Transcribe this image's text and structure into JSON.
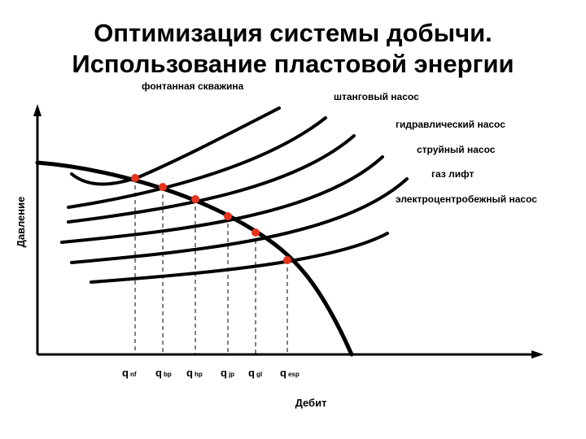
{
  "title": {
    "line1": "Оптимизация системы добычи.",
    "line2": "Использование пластовой энергии"
  },
  "axes": {
    "y_label": "Давление",
    "x_label": "Дебит"
  },
  "curve_labels": [
    "фонтанная скважина",
    "штанговый насос",
    "гидравлический насос",
    "струйный насос",
    "газ лифт",
    "электроцентробежный  насос"
  ],
  "rates": [
    {
      "main": "q",
      "sub": "nf"
    },
    {
      "main": "q",
      "sub": "bp"
    },
    {
      "main": "q",
      "sub": "hp"
    },
    {
      "main": "q",
      "sub": "jp"
    },
    {
      "main": "q",
      "sub": "gl"
    },
    {
      "main": "q",
      "sub": "esp"
    }
  ],
  "colors": {
    "line": "#000000",
    "point": "#e8341c"
  }
}
